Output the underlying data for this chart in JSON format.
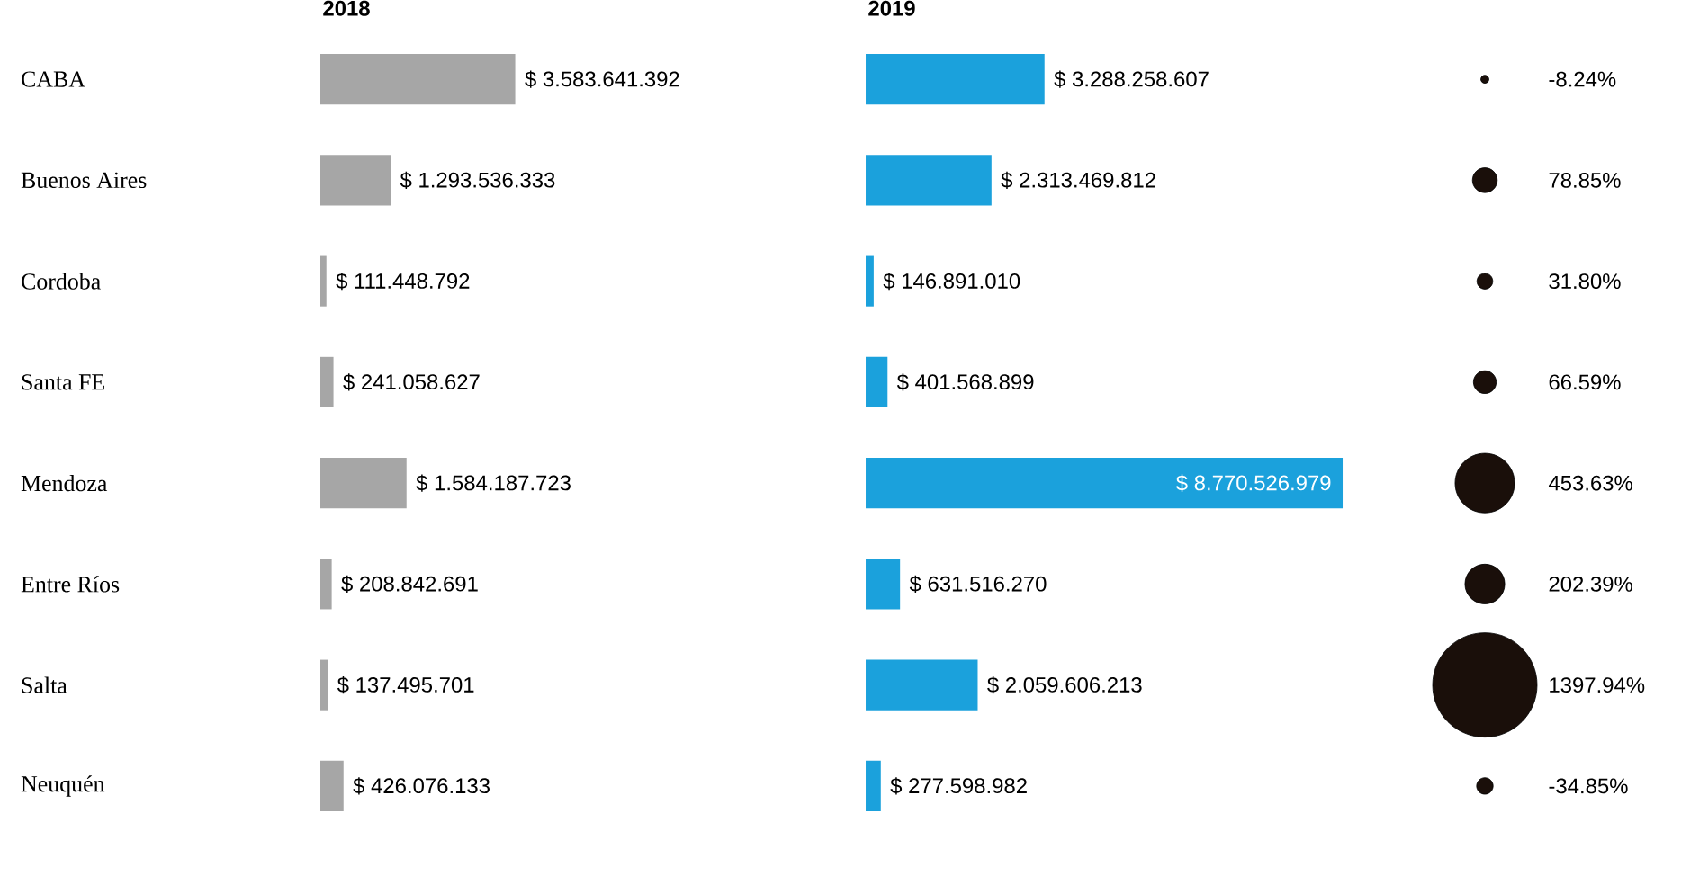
{
  "chart_data": [
    {
      "type": "bar",
      "orientation": "horizontal",
      "title": "2018",
      "categories": [
        "CABA",
        "Buenos Aires",
        "Cordoba",
        "Santa FE",
        "Mendoza",
        "Entre Ríos",
        "Salta",
        "Neuquén"
      ],
      "tick_labels": "y",
      "color": "#a6a6a6",
      "values": [
        3583641392,
        1293536333,
        111448792,
        241058627,
        1584187723,
        208842691,
        137495701,
        426076133
      ],
      "value_labels": [
        "$ 3.583.641.392",
        "$ 1.293.536.333",
        "$ 111.448.792",
        "$ 241.058.627",
        "$ 1.584.187.723",
        "$ 208.842.691",
        "$ 137.495.701",
        "$ 426.076.133"
      ]
    },
    {
      "type": "bar",
      "orientation": "horizontal",
      "title": "2019",
      "categories": [
        null,
        null,
        null,
        null,
        null,
        null,
        null,
        null
      ],
      "tick_labels": false,
      "color": "#1ba1dc",
      "values": [
        3288258607,
        2313469812,
        146891010,
        401568899,
        8770526979,
        631516270,
        2059606213,
        277598982
      ],
      "value_labels": [
        "$ 3.288.258.607",
        "$ 2.313.469.812",
        "$ 146.891.010",
        "$ 401.568.899",
        "$ 8.770.526.979",
        "$ 631.516.270",
        "$ 2.059.606.213",
        "$ 277.598.982"
      ]
    },
    {
      "type": "other",
      "categories": [
        null,
        null,
        null,
        null,
        null,
        null,
        null,
        null
      ],
      "color": "#1a0f0a",
      "values": [
        -8.24,
        78.85,
        31.8,
        66.59,
        453.63,
        202.39,
        1397.94,
        -34.85
      ],
      "value_labels": [
        "-8.24%",
        "78.85%",
        "31.80%",
        "66.59%",
        "453.63%",
        "202.39%",
        "1397.94%",
        "-34.85%"
      ]
    }
  ]
}
